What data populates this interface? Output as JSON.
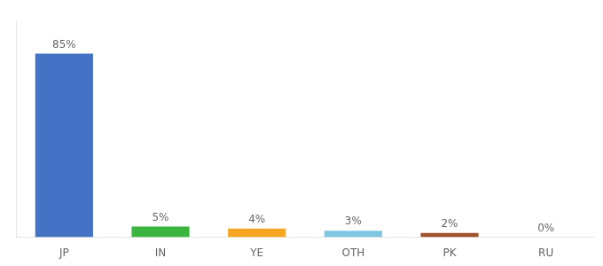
{
  "chart_data": {
    "type": "bar",
    "categories": [
      "JP",
      "IN",
      "YE",
      "OTH",
      "PK",
      "RU"
    ],
    "values": [
      85,
      5,
      4,
      3,
      2,
      0
    ],
    "value_labels": [
      "85%",
      "5%",
      "4%",
      "3%",
      "2%",
      "0%"
    ],
    "colors": [
      "#4472c4",
      "#3cb540",
      "#f5a623",
      "#7ec8e3",
      "#a0522d",
      "#cccccc"
    ],
    "ylim": [
      0,
      100
    ],
    "grid": false,
    "data_labels": true,
    "tick_labels": "x"
  }
}
